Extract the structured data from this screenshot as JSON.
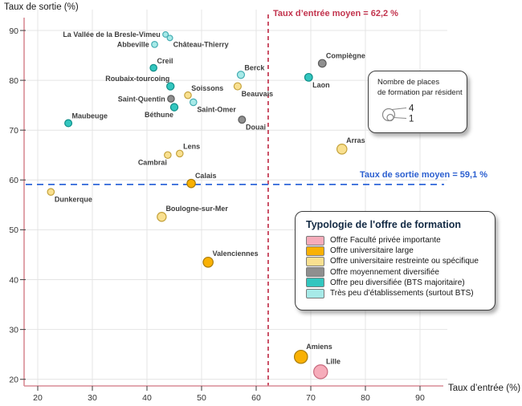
{
  "chart_data": {
    "type": "scatter",
    "title": "",
    "xlabel": "Taux d’entrée (%)",
    "ylabel": "Taux de sortie (%)",
    "x_ticks": [
      20,
      30,
      40,
      50,
      60,
      70,
      80,
      90
    ],
    "y_ticks": [
      20,
      30,
      40,
      50,
      60,
      70,
      80,
      90
    ],
    "xlim": [
      17.5,
      94.5
    ],
    "ylim": [
      18.5,
      94.3
    ],
    "grid": true,
    "axis_color": "#D98C95",
    "grid_color": "#E4E4E4",
    "mean_lines": {
      "vertical": {
        "value": 62.2,
        "label": "Taux d’entrée moyen = 62,2 %",
        "color": "#C2334D"
      },
      "horizontal": {
        "value": 59.1,
        "label": "Taux de sortie moyen = 59,1 %",
        "color": "#2E66D9"
      }
    },
    "size_encoding": "Nombre de places de formation par résident",
    "points": [
      {
        "name": "La Vallée de la Bresle-Vimeu",
        "x": 43.4,
        "y": 89.2,
        "cat": "tres_peu_etablissements",
        "r": 3.4,
        "lp": "left"
      },
      {
        "name": "Château-Thierry",
        "x": 44.2,
        "y": 88.5,
        "cat": "tres_peu_etablissements",
        "r": 3.4,
        "lp": "below-right"
      },
      {
        "name": "Abbeville",
        "x": 41.4,
        "y": 87.2,
        "cat": "tres_peu_etablissements",
        "r": 3.8,
        "lp": "left"
      },
      {
        "name": "Creil",
        "x": 41.2,
        "y": 82.5,
        "cat": "peu_diversifiee",
        "r": 4.2,
        "lp": "above-right"
      },
      {
        "name": "Compiègne",
        "x": 72.1,
        "y": 83.4,
        "cat": "moyennement_diversifiee",
        "r": 4.8,
        "lp": "above-right"
      },
      {
        "name": "Berck",
        "x": 57.2,
        "y": 81.1,
        "cat": "tres_peu_etablissements",
        "r": 4.5,
        "lp": "above-right"
      },
      {
        "name": "Laon",
        "x": 69.6,
        "y": 80.6,
        "cat": "peu_diversifiee",
        "r": 4.8,
        "lp": "below-right"
      },
      {
        "name": "Roubaix-tourcoing",
        "x": 44.3,
        "y": 78.8,
        "cat": "peu_diversifiee",
        "r": 4.6,
        "lp": "above-left"
      },
      {
        "name": "Beauvais",
        "x": 56.6,
        "y": 78.8,
        "cat": "universitaire_restreinte",
        "r": 4.5,
        "lp": "below-right"
      },
      {
        "name": "Soissons",
        "x": 47.5,
        "y": 77.0,
        "cat": "universitaire_restreinte",
        "r": 4.2,
        "lp": "above-right"
      },
      {
        "name": "Saint-Quentin",
        "x": 44.4,
        "y": 76.3,
        "cat": "moyennement_diversifiee",
        "r": 4.2,
        "lp": "left"
      },
      {
        "name": "Saint-Omer",
        "x": 48.5,
        "y": 75.6,
        "cat": "tres_peu_etablissements",
        "r": 4.2,
        "lp": "below-right"
      },
      {
        "name": "Béthune",
        "x": 45.0,
        "y": 74.6,
        "cat": "peu_diversifiee",
        "r": 4.6,
        "lp": "below-left"
      },
      {
        "name": "Douai",
        "x": 57.4,
        "y": 72.1,
        "cat": "moyennement_diversifiee",
        "r": 4.4,
        "lp": "below-right"
      },
      {
        "name": "Maubeuge",
        "x": 25.6,
        "y": 71.4,
        "cat": "peu_diversifiee",
        "r": 4.4,
        "lp": "above-right"
      },
      {
        "name": "Arras",
        "x": 75.7,
        "y": 66.2,
        "cat": "universitaire_restreinte",
        "r": 6.2,
        "lp": "above-right"
      },
      {
        "name": "Lens",
        "x": 46.0,
        "y": 65.3,
        "cat": "universitaire_restreinte",
        "r": 4.2,
        "lp": "above-right"
      },
      {
        "name": "Cambrai",
        "x": 43.8,
        "y": 65.0,
        "cat": "universitaire_restreinte",
        "r": 4.2,
        "lp": "below-left"
      },
      {
        "name": "Calais",
        "x": 48.1,
        "y": 59.3,
        "cat": "universitaire_large",
        "r": 5.2,
        "lp": "above-right"
      },
      {
        "name": "Dunkerque",
        "x": 22.4,
        "y": 57.6,
        "cat": "universitaire_restreinte",
        "r": 4.2,
        "lp": "below-right"
      },
      {
        "name": "Boulogne-sur-Mer",
        "x": 42.7,
        "y": 52.6,
        "cat": "universitaire_restreinte",
        "r": 5.6,
        "lp": "above-right"
      },
      {
        "name": "Valenciennes",
        "x": 51.2,
        "y": 43.5,
        "cat": "universitaire_large",
        "r": 6.2,
        "lp": "above-right"
      },
      {
        "name": "Amiens",
        "x": 68.2,
        "y": 24.5,
        "cat": "universitaire_large",
        "r": 8.2,
        "lp": "above-right"
      },
      {
        "name": "Lille",
        "x": 71.8,
        "y": 21.5,
        "cat": "faculte_privee",
        "r": 8.6,
        "lp": "above-right"
      }
    ]
  },
  "typology_legend": {
    "title": "Typologie de l'offre de formation",
    "items": [
      {
        "key": "faculte_privee",
        "label": "Offre Faculté privée importante",
        "fill": "#F6ACBA",
        "stroke": "#C96A7E"
      },
      {
        "key": "universitaire_large",
        "label": "Offre universitaire large",
        "fill": "#F9B104",
        "stroke": "#A97C08"
      },
      {
        "key": "universitaire_restreinte",
        "label": "Offre universitaire restreinte ou spécifique",
        "fill": "#F9E090",
        "stroke": "#C4A23C"
      },
      {
        "key": "moyennement_diversifiee",
        "label": "Offre moyennement diversifiée",
        "fill": "#8F8F8F",
        "stroke": "#5A5A5A"
      },
      {
        "key": "peu_diversifiee",
        "label": "Offre peu diversifiée (BTS majoritaire)",
        "fill": "#33C6BF",
        "stroke": "#0E8E88"
      },
      {
        "key": "tres_peu_etablissements",
        "label": "Très peu d’établissements (surtout BTS)",
        "fill": "#A7EAE8",
        "stroke": "#45ADB3"
      }
    ]
  },
  "size_legend": {
    "title_lines": [
      "Nombre de places",
      "de formation par résident"
    ],
    "values": [
      "4",
      "1"
    ],
    "radii": [
      7.5,
      4
    ]
  }
}
